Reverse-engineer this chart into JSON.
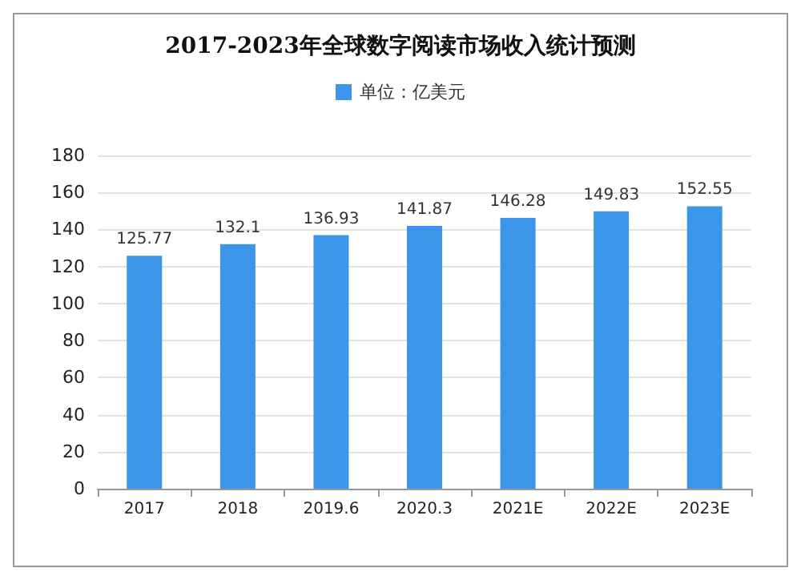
{
  "chart_data": {
    "type": "bar",
    "title": "2017-2023年全球数字阅读市场收入统计预测",
    "categories": [
      "2017",
      "2018",
      "2019.6",
      "2020.3",
      "2021E",
      "2022E",
      "2023E"
    ],
    "series": [
      {
        "name": "单位：亿美元",
        "color": "#3d95ea",
        "values": [
          125.77,
          132.1,
          136.93,
          141.87,
          146.28,
          149.83,
          152.55
        ]
      }
    ],
    "ylim": [
      0,
      180
    ],
    "yticks": [
      0,
      20,
      40,
      60,
      80,
      100,
      120,
      140,
      160,
      180
    ],
    "grid": "y",
    "legend": "top",
    "data_labels": true
  }
}
